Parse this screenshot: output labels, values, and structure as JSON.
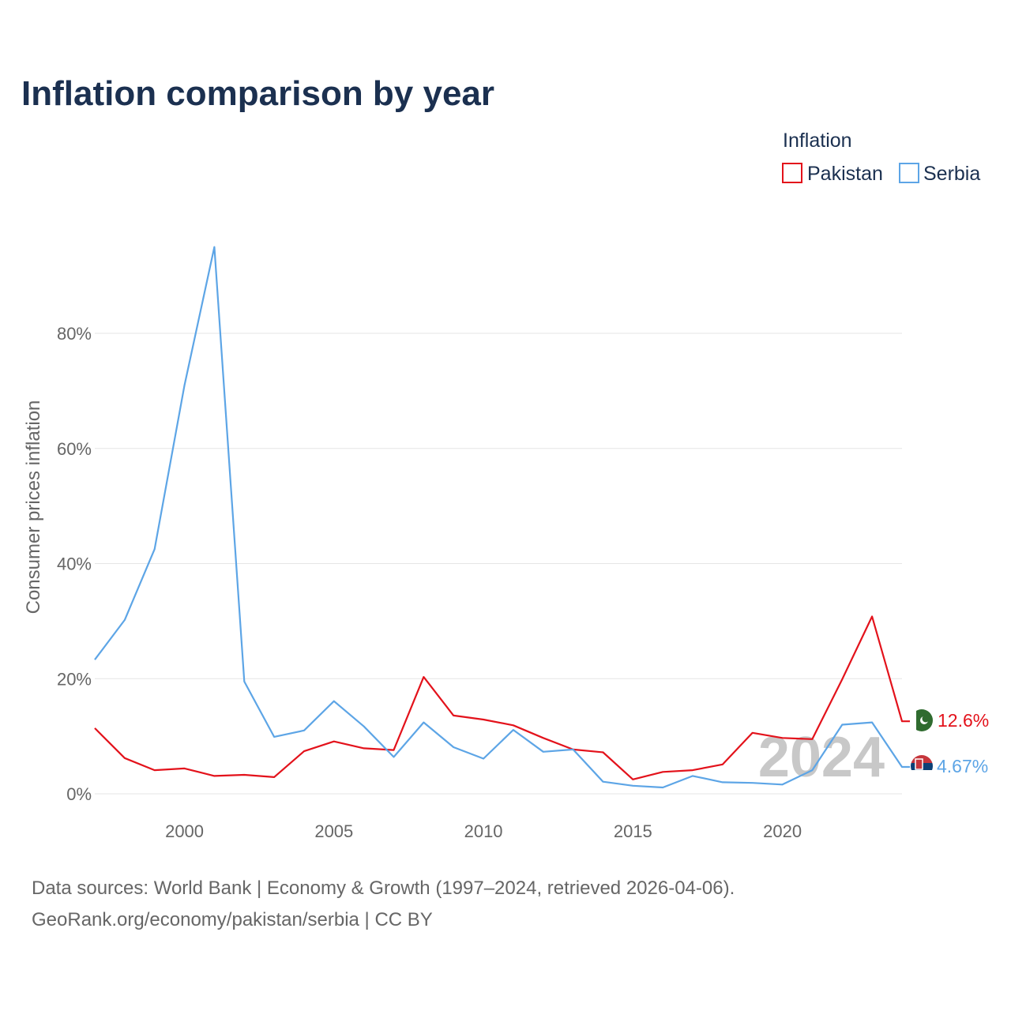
{
  "title": "Inflation comparison by year",
  "legend": {
    "title": "Inflation",
    "items": [
      {
        "name": "Pakistan",
        "color": "#e3121b"
      },
      {
        "name": "Serbia",
        "color": "#5da5e6"
      }
    ]
  },
  "year_watermark": "2024",
  "footer": {
    "line1": "Data sources: World Bank | Economy & Growth (1997–2024, retrieved 2026-04-06).",
    "line2": "GeoRank.org/economy/pakistan/serbia | CC BY"
  },
  "end_labels": {
    "pakistan": "12.6%",
    "serbia": "4.67%"
  },
  "chart_data": {
    "type": "line",
    "title": "Inflation comparison by year",
    "xlabel": "",
    "ylabel": "Consumer prices inflation",
    "xlim": [
      1997,
      2024
    ],
    "ylim": [
      -2,
      95
    ],
    "x_ticks": [
      2000,
      2005,
      2010,
      2015,
      2020
    ],
    "x_tick_labels": [
      "2000",
      "2005",
      "2010",
      "2015",
      "2020"
    ],
    "y_ticks": [
      0,
      20,
      40,
      60,
      80
    ],
    "y_tick_labels": [
      "0%",
      "20%",
      "40%",
      "60%",
      "80%"
    ],
    "grid": true,
    "legend_position": "top-right",
    "x": [
      1997,
      1998,
      1999,
      2000,
      2001,
      2002,
      2003,
      2004,
      2005,
      2006,
      2007,
      2008,
      2009,
      2010,
      2011,
      2012,
      2013,
      2014,
      2015,
      2016,
      2017,
      2018,
      2019,
      2020,
      2021,
      2022,
      2023,
      2024
    ],
    "series": [
      {
        "name": "Pakistan",
        "color": "#e3121b",
        "values": [
          11.4,
          6.2,
          4.1,
          4.4,
          3.1,
          3.3,
          2.9,
          7.4,
          9.1,
          7.9,
          7.6,
          20.3,
          13.6,
          12.9,
          11.9,
          9.7,
          7.7,
          7.2,
          2.5,
          3.8,
          4.1,
          5.1,
          10.6,
          9.7,
          9.5,
          19.9,
          30.8,
          12.6
        ]
      },
      {
        "name": "Serbia",
        "color": "#5da5e6",
        "values": [
          23.3,
          30.2,
          42.5,
          71.0,
          95.0,
          19.5,
          9.9,
          11.0,
          16.1,
          11.7,
          6.4,
          12.4,
          8.1,
          6.1,
          11.1,
          7.3,
          7.7,
          2.1,
          1.4,
          1.1,
          3.1,
          2.0,
          1.9,
          1.6,
          4.1,
          12.0,
          12.4,
          4.67
        ]
      }
    ]
  }
}
